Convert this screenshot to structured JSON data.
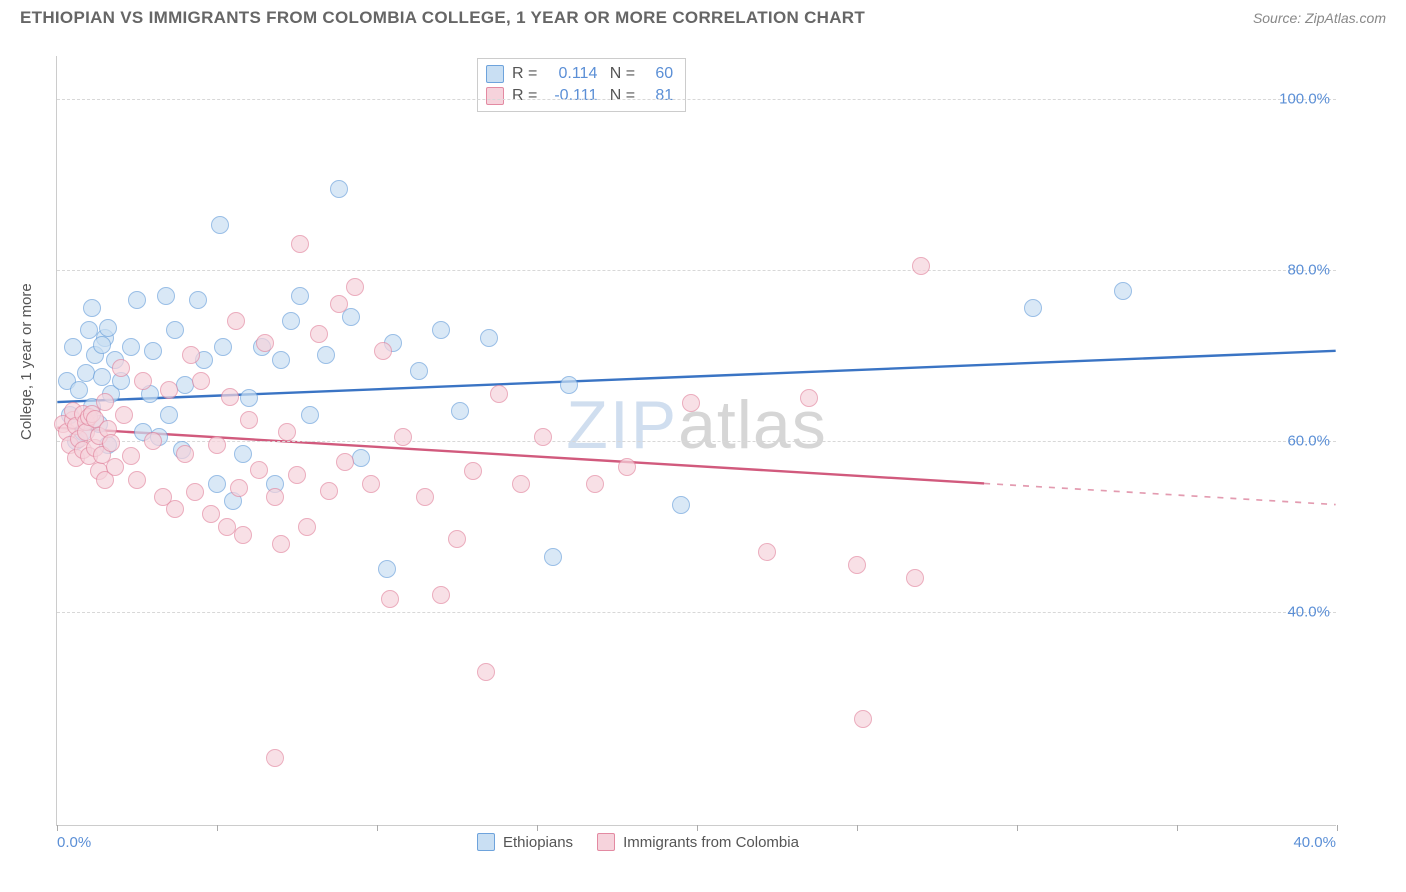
{
  "title": "ETHIOPIAN VS IMMIGRANTS FROM COLOMBIA COLLEGE, 1 YEAR OR MORE CORRELATION CHART",
  "source": "Source: ZipAtlas.com",
  "y_axis_title": "College, 1 year or more",
  "watermark_a": "ZIP",
  "watermark_b": "atlas",
  "chart": {
    "type": "scatter",
    "xlim": [
      0,
      40
    ],
    "ylim": [
      15,
      105
    ],
    "x_ticks": [
      0,
      5,
      10,
      15,
      20,
      25,
      30,
      35,
      40
    ],
    "x_tick_labels_shown": {
      "first": "0.0%",
      "last": "40.0%"
    },
    "y_gridlines": [
      40,
      60,
      80,
      100
    ],
    "y_tick_labels": [
      "40.0%",
      "60.0%",
      "80.0%",
      "100.0%"
    ],
    "background_color": "#ffffff",
    "grid_color": "#d8d8d8",
    "axis_color": "#cccccc",
    "tick_label_color": "#5b8fd6",
    "axis_title_color": "#555555",
    "marker_radius": 9,
    "marker_opacity": 0.7,
    "series": [
      {
        "name": "Ethiopians",
        "fill": "#c9dff3",
        "stroke": "#6ea3dc",
        "line_color": "#3a74c4",
        "line_width": 2.4,
        "R": "0.114",
        "N": "60",
        "trend": {
          "x0": 0,
          "y0": 64.5,
          "x1": 40,
          "y1": 70.5,
          "dashed_from_x": 40
        },
        "points": [
          [
            0.3,
            67
          ],
          [
            0.4,
            63
          ],
          [
            0.5,
            71
          ],
          [
            0.6,
            60
          ],
          [
            0.7,
            66
          ],
          [
            0.8,
            61
          ],
          [
            0.9,
            68
          ],
          [
            1.0,
            73
          ],
          [
            1.1,
            64
          ],
          [
            1.2,
            70
          ],
          [
            1.3,
            62
          ],
          [
            1.4,
            67.5
          ],
          [
            1.5,
            72
          ],
          [
            1.6,
            59.5
          ],
          [
            1.7,
            65.5
          ],
          [
            1.8,
            69.5
          ],
          [
            1.4,
            71.2
          ],
          [
            1.6,
            73.2
          ],
          [
            1.1,
            75.5
          ],
          [
            2.0,
            67
          ],
          [
            2.3,
            71
          ],
          [
            2.5,
            76.5
          ],
          [
            2.7,
            61
          ],
          [
            2.9,
            65.5
          ],
          [
            3.0,
            70.5
          ],
          [
            3.2,
            60.5
          ],
          [
            3.4,
            77
          ],
          [
            3.5,
            63.0
          ],
          [
            3.7,
            73
          ],
          [
            3.9,
            59
          ],
          [
            4.0,
            66.5
          ],
          [
            4.4,
            76.5
          ],
          [
            4.6,
            69.5
          ],
          [
            5.0,
            55
          ],
          [
            5.2,
            71
          ],
          [
            5.1,
            85.3
          ],
          [
            5.5,
            53
          ],
          [
            5.8,
            58.5
          ],
          [
            6.0,
            65
          ],
          [
            6.4,
            71
          ],
          [
            6.8,
            55
          ],
          [
            7.0,
            69.5
          ],
          [
            7.3,
            74
          ],
          [
            7.6,
            77
          ],
          [
            7.9,
            63
          ],
          [
            8.4,
            70
          ],
          [
            8.8,
            89.5
          ],
          [
            9.2,
            74.5
          ],
          [
            9.5,
            58
          ],
          [
            10.5,
            71.5
          ],
          [
            11.3,
            68.2
          ],
          [
            12.0,
            73
          ],
          [
            12.6,
            63.5
          ],
          [
            13.5,
            72
          ],
          [
            15.5,
            46.5
          ],
          [
            16.0,
            66.5
          ],
          [
            19.5,
            52.5
          ],
          [
            30.5,
            75.5
          ],
          [
            33.3,
            77.5
          ],
          [
            10.3,
            45
          ]
        ]
      },
      {
        "name": "Immigrants from Colombia",
        "fill": "#f6d3dc",
        "stroke": "#e38aa2",
        "line_color": "#d15a7d",
        "line_width": 2.4,
        "R": "-0.111",
        "N": "81",
        "trend": {
          "x0": 0,
          "y0": 61.5,
          "x1": 40,
          "y1": 52.5,
          "dashed_from_x": 29
        },
        "points": [
          [
            0.2,
            62
          ],
          [
            0.3,
            61
          ],
          [
            0.4,
            59.5
          ],
          [
            0.5,
            62.5
          ],
          [
            0.5,
            63.5
          ],
          [
            0.6,
            58
          ],
          [
            0.6,
            61.8
          ],
          [
            0.7,
            60.2
          ],
          [
            0.8,
            63.2
          ],
          [
            0.8,
            59
          ],
          [
            0.9,
            62.2
          ],
          [
            0.9,
            61.0
          ],
          [
            1.0,
            62.8
          ],
          [
            1.0,
            58.2
          ],
          [
            1.1,
            63.2
          ],
          [
            1.2,
            59.2
          ],
          [
            1.2,
            62.6
          ],
          [
            1.3,
            56.5
          ],
          [
            1.3,
            60.6
          ],
          [
            1.4,
            58.4
          ],
          [
            1.5,
            64.6
          ],
          [
            1.5,
            55.5
          ],
          [
            1.6,
            61.4
          ],
          [
            1.7,
            59.8
          ],
          [
            1.8,
            57.0
          ],
          [
            2.0,
            68.5
          ],
          [
            2.1,
            63.0
          ],
          [
            2.3,
            58.3
          ],
          [
            2.5,
            55.5
          ],
          [
            2.7,
            67.0
          ],
          [
            3.0,
            60.0
          ],
          [
            3.3,
            53.5
          ],
          [
            3.5,
            66.0
          ],
          [
            3.7,
            52.0
          ],
          [
            4.0,
            58.5
          ],
          [
            4.3,
            54.0
          ],
          [
            4.5,
            67.0
          ],
          [
            4.8,
            51.5
          ],
          [
            5.0,
            59.5
          ],
          [
            5.3,
            50.0
          ],
          [
            5.4,
            65.2
          ],
          [
            5.7,
            54.5
          ],
          [
            5.8,
            49.0
          ],
          [
            6.0,
            62.5
          ],
          [
            6.3,
            56.6
          ],
          [
            6.5,
            71.5
          ],
          [
            6.8,
            53.5
          ],
          [
            7.0,
            48.0
          ],
          [
            7.2,
            61.0
          ],
          [
            7.5,
            56.0
          ],
          [
            7.6,
            83.0
          ],
          [
            7.8,
            50.0
          ],
          [
            8.2,
            72.5
          ],
          [
            8.5,
            54.2
          ],
          [
            8.8,
            76.0
          ],
          [
            9.0,
            57.5
          ],
          [
            9.3,
            78.0
          ],
          [
            9.8,
            55.0
          ],
          [
            10.2,
            70.5
          ],
          [
            10.4,
            41.5
          ],
          [
            10.8,
            60.5
          ],
          [
            11.5,
            53.5
          ],
          [
            12.0,
            42.0
          ],
          [
            12.5,
            48.5
          ],
          [
            13.0,
            56.5
          ],
          [
            13.4,
            33.0
          ],
          [
            13.8,
            65.5
          ],
          [
            14.5,
            55.0
          ],
          [
            15.2,
            60.5
          ],
          [
            16.8,
            55.0
          ],
          [
            17.8,
            57.0
          ],
          [
            19.8,
            64.5
          ],
          [
            22.2,
            47.0
          ],
          [
            23.5,
            65.0
          ],
          [
            25.0,
            45.5
          ],
          [
            27.0,
            80.5
          ],
          [
            6.8,
            23.0
          ],
          [
            26.8,
            44.0
          ],
          [
            25.2,
            27.5
          ],
          [
            5.6,
            74.0
          ],
          [
            4.2,
            70.0
          ]
        ]
      }
    ]
  },
  "legend_bottom": [
    {
      "label": "Ethiopians",
      "fill": "#c9dff3",
      "stroke": "#6ea3dc"
    },
    {
      "label": "Immigrants from Colombia",
      "fill": "#f6d3dc",
      "stroke": "#e38aa2"
    }
  ]
}
